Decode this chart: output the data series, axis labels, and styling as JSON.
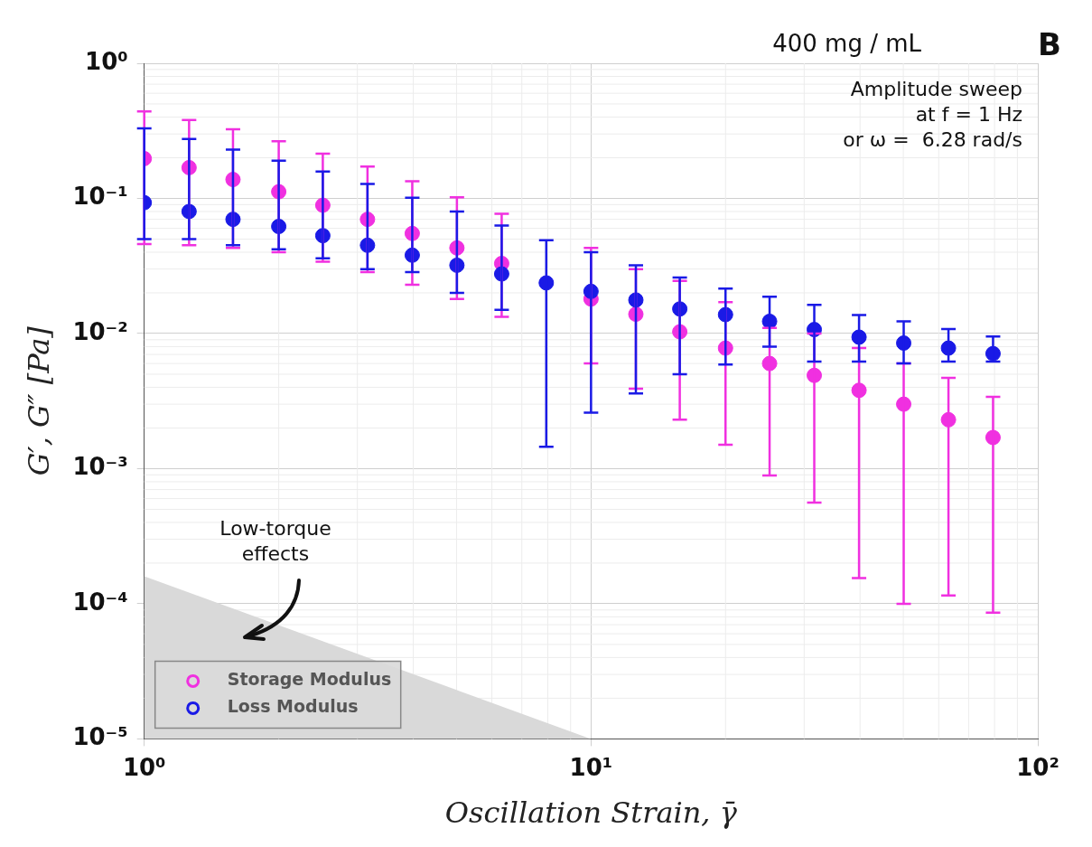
{
  "chart_data": {
    "type": "scatter",
    "xlabel": "Oscillation Strain, γ̄",
    "ylabel": "G′, G″ [Pa]",
    "annotations": [
      "400 mg / mL",
      "B",
      "Amplitude sweep",
      "at f = 1 Hz",
      "or ω =  6.28 rad/s",
      "Low-torque effects"
    ],
    "x": [
      1,
      1.26,
      1.58,
      2,
      2.51,
      3.16,
      3.98,
      5.01,
      6.31,
      7.94,
      10,
      12.6,
      15.8,
      20,
      25.1,
      31.6,
      39.8,
      50.1,
      63.1,
      79.4
    ],
    "log": "xy",
    "xlim": [
      1,
      100
    ],
    "ylim": [
      1e-05,
      1
    ],
    "xticks": [
      {
        "value": 1,
        "label": "10⁰"
      },
      {
        "value": 10,
        "label": "10¹"
      },
      {
        "value": 100,
        "label": "10²"
      }
    ],
    "yticks": [
      {
        "value": 1e-05,
        "label": "10⁻⁵"
      },
      {
        "value": 0.0001,
        "label": "10⁻⁴"
      },
      {
        "value": 0.001,
        "label": "10⁻³"
      },
      {
        "value": 0.01,
        "label": "10⁻²"
      },
      {
        "value": 0.1,
        "label": "10⁻¹"
      },
      {
        "value": 1,
        "label": "10⁰"
      }
    ],
    "grid": true,
    "legend": "bottom left",
    "marker": "circle",
    "series": [
      {
        "type": "area",
        "marker": "none",
        "color": "#d9d9d9",
        "x": [
          1,
          10
        ],
        "values": [
          0.00016,
          1e-05
        ]
      },
      {
        "name": "Storage Modulus",
        "color": "#f030e0",
        "values": [
          0.197,
          0.169,
          0.138,
          0.112,
          0.089,
          0.07,
          0.055,
          0.043,
          0.033,
          null,
          0.018,
          0.0139,
          0.0103,
          0.0078,
          0.006,
          0.0049,
          0.0038,
          0.003,
          0.0023,
          0.0017
        ],
        "errors": [
          [
            0.046,
            0.44
          ],
          [
            0.045,
            0.38
          ],
          [
            0.043,
            0.325
          ],
          [
            0.04,
            0.265
          ],
          [
            0.034,
            0.214
          ],
          [
            0.0285,
            0.172
          ],
          [
            0.023,
            0.134
          ],
          [
            0.018,
            0.102
          ],
          [
            0.0133,
            0.077
          ],
          null,
          [
            0.006,
            0.043
          ],
          [
            0.0039,
            0.03
          ],
          [
            0.0023,
            0.0245
          ],
          [
            0.0015,
            0.0171
          ],
          [
            0.00089,
            0.011
          ],
          [
            0.00056,
            0.01
          ],
          [
            0.000155,
            0.0078
          ],
          [
            0.0001,
            0.006
          ],
          [
            0.000115,
            0.0047
          ],
          [
            8.6e-05,
            0.0034
          ]
        ]
      },
      {
        "name": "Loss Modulus",
        "color": "#1a1ae6",
        "values": [
          0.093,
          0.08,
          0.07,
          0.062,
          0.053,
          0.045,
          0.038,
          0.032,
          0.0276,
          0.0237,
          0.0205,
          0.0177,
          0.0152,
          0.0138,
          0.0123,
          0.0107,
          0.0094,
          0.0085,
          0.0078,
          0.0071
        ],
        "errors": [
          [
            0.05,
            0.33
          ],
          [
            0.05,
            0.275
          ],
          [
            0.045,
            0.23
          ],
          [
            0.042,
            0.19
          ],
          [
            0.036,
            0.158
          ],
          [
            0.03,
            0.128
          ],
          [
            0.0285,
            0.101
          ],
          [
            0.02,
            0.08
          ],
          [
            0.015,
            0.063
          ],
          [
            0.00145,
            0.049
          ],
          [
            0.0026,
            0.04
          ],
          [
            0.0036,
            0.032
          ],
          [
            0.005,
            0.026
          ],
          [
            0.0059,
            0.0215
          ],
          [
            0.008,
            0.0187
          ],
          [
            0.0062,
            0.0163
          ],
          [
            0.0062,
            0.0137
          ],
          [
            0.006,
            0.0123
          ],
          [
            0.0062,
            0.0108
          ],
          [
            0.0062,
            0.0095
          ]
        ]
      }
    ]
  }
}
